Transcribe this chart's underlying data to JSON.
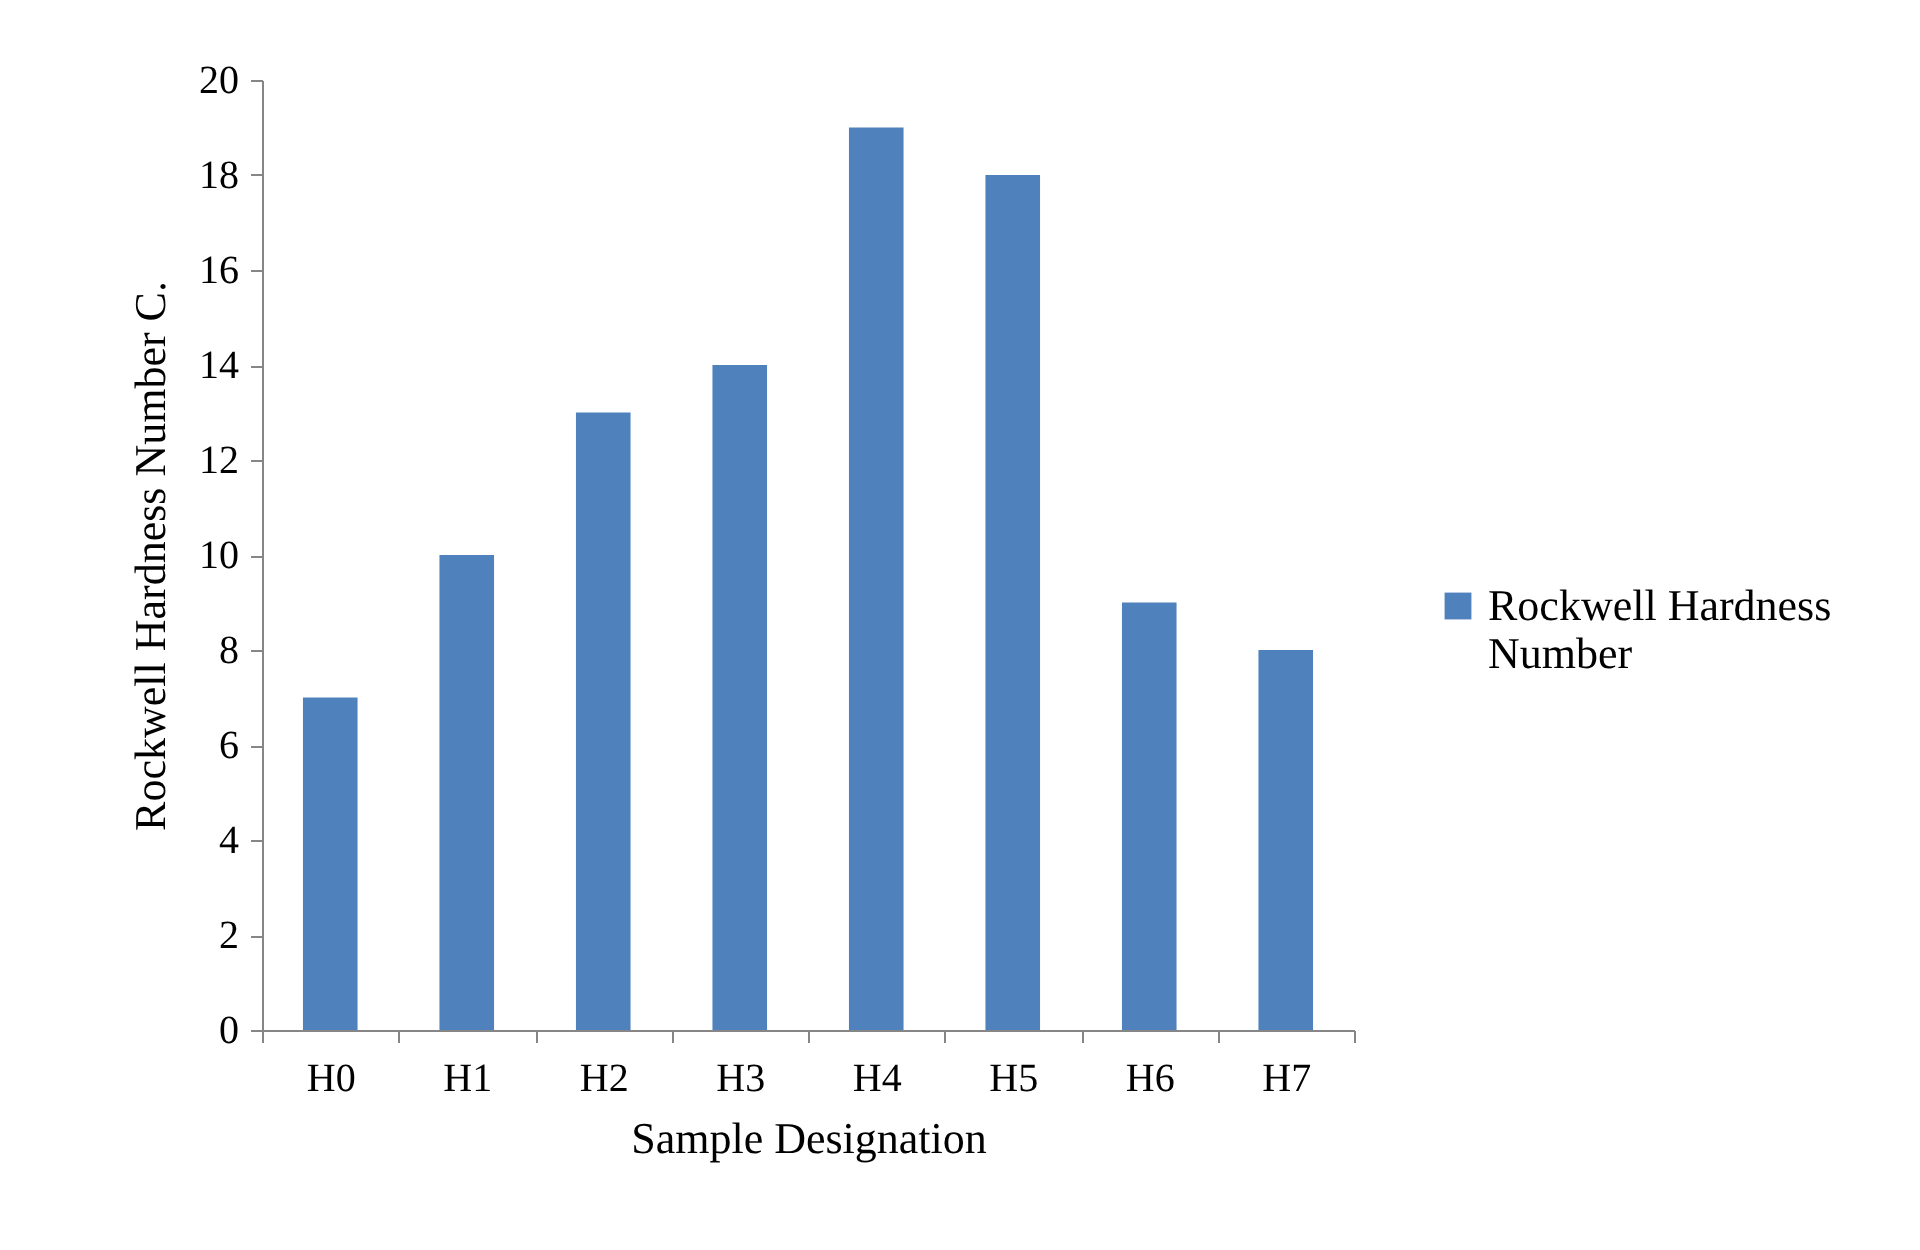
{
  "chart_data": {
    "type": "bar",
    "xlabel": "Sample Designation",
    "ylabel": "Rockwell Hardness Number C.",
    "categories": [
      "H0",
      "H1",
      "H2",
      "H3",
      "H4",
      "H5",
      "H6",
      "H7"
    ],
    "series": [
      {
        "name": "Rockwell Hardness Number",
        "color": "#4f81bd",
        "values": [
          7,
          10,
          13,
          14,
          19,
          18,
          9,
          8
        ]
      }
    ],
    "ylim": [
      0,
      20
    ],
    "yticks": [
      0,
      2,
      4,
      6,
      8,
      10,
      12,
      14,
      16,
      18,
      20
    ],
    "grid": false,
    "legend": "right"
  }
}
